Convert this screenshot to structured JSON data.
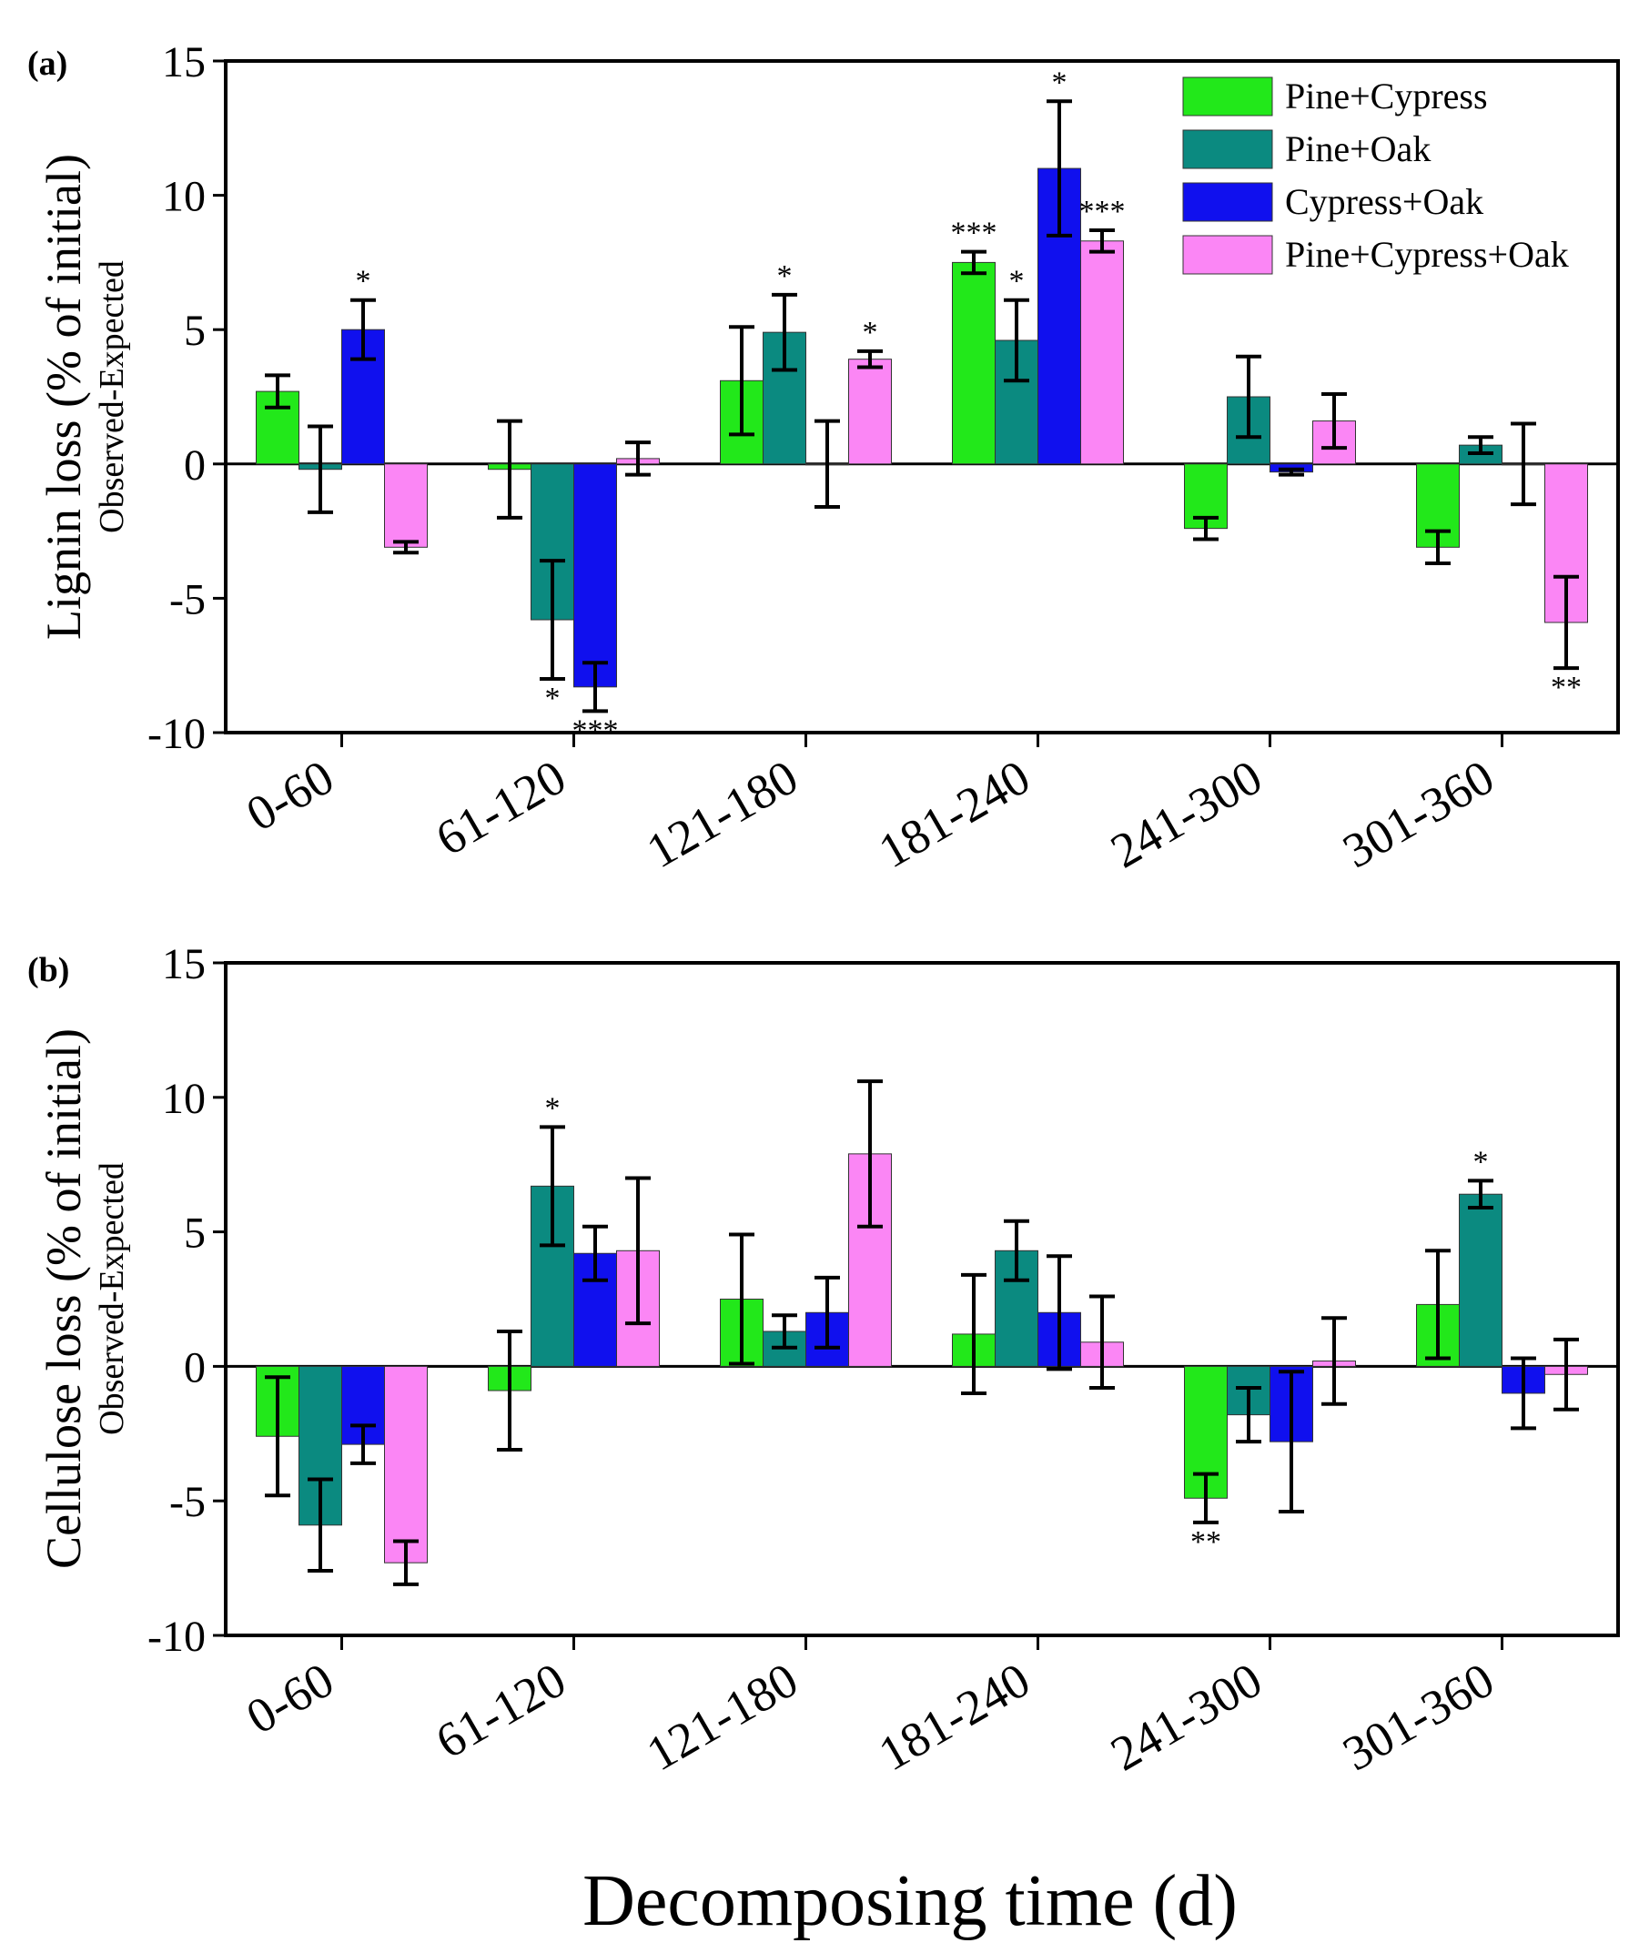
{
  "colors": {
    "Pine+Cypress": "#22e81a",
    "Pine+Oak": "#0b8a80",
    "Cypress+Oak": "#1010ee",
    "Pine+Cypress+Oak": "#fb86f5"
  },
  "xlabel": "Decomposing time (d)",
  "chart_data": [
    {
      "type": "bar",
      "panel": "(a)",
      "ylabel": "Lignin loss (% of initial)",
      "ylabel_sub": "Observed-Expected",
      "ylim": [
        -10,
        15
      ],
      "yticks": [
        -10,
        -5,
        0,
        5,
        10,
        15
      ],
      "categories": [
        "0-60",
        "61-120",
        "121-180",
        "181-240",
        "241-300",
        "301-360"
      ],
      "legend": "top-right",
      "series": [
        {
          "name": "Pine+Cypress",
          "values": [
            2.7,
            -0.2,
            3.1,
            7.5,
            -2.4,
            -3.1
          ],
          "err": [
            0.6,
            1.8,
            2.0,
            0.4,
            0.4,
            0.6
          ],
          "sig": [
            "",
            "",
            "",
            "***",
            "",
            ""
          ]
        },
        {
          "name": "Pine+Oak",
          "values": [
            -0.2,
            -5.8,
            4.9,
            4.6,
            2.5,
            0.7
          ],
          "err": [
            1.6,
            2.2,
            1.4,
            1.5,
            1.5,
            0.3
          ],
          "sig": [
            "",
            "*",
            "*",
            "*",
            "",
            ""
          ]
        },
        {
          "name": "Cypress+Oak",
          "values": [
            5.0,
            -8.3,
            0.0,
            11.0,
            -0.3,
            0.0
          ],
          "err": [
            1.1,
            0.9,
            1.6,
            2.5,
            0.1,
            1.5
          ],
          "sig": [
            "*",
            "***",
            "",
            "*",
            "",
            ""
          ]
        },
        {
          "name": "Pine+Cypress+Oak",
          "values": [
            -3.1,
            0.2,
            3.9,
            8.3,
            1.6,
            -5.9
          ],
          "err": [
            0.2,
            0.6,
            0.3,
            0.4,
            1.0,
            1.7
          ],
          "sig": [
            "",
            "",
            "*",
            "***",
            "",
            "**"
          ]
        }
      ]
    },
    {
      "type": "bar",
      "panel": "(b)",
      "ylabel": "Cellulose loss (% of initial)",
      "ylabel_sub": "Observed-Expected",
      "ylim": [
        -10,
        15
      ],
      "yticks": [
        -10,
        -5,
        0,
        5,
        10,
        15
      ],
      "categories": [
        "0-60",
        "61-120",
        "121-180",
        "181-240",
        "241-300",
        "301-360"
      ],
      "series": [
        {
          "name": "Pine+Cypress",
          "values": [
            -2.6,
            -0.9,
            2.5,
            1.2,
            -4.9,
            2.3
          ],
          "err": [
            2.2,
            2.2,
            2.4,
            2.2,
            0.9,
            2.0
          ],
          "sig": [
            "",
            "",
            "",
            "",
            "**",
            ""
          ]
        },
        {
          "name": "Pine+Oak",
          "values": [
            -5.9,
            6.7,
            1.3,
            4.3,
            -1.8,
            6.4
          ],
          "err": [
            1.7,
            2.2,
            0.6,
            1.1,
            1.0,
            0.5
          ],
          "sig": [
            "",
            "*",
            "",
            "",
            "",
            "*"
          ]
        },
        {
          "name": "Cypress+Oak",
          "values": [
            -2.9,
            4.2,
            2.0,
            2.0,
            -2.8,
            -1.0
          ],
          "err": [
            0.7,
            1.0,
            1.3,
            2.1,
            2.6,
            1.3
          ],
          "sig": [
            "",
            "",
            "",
            "",
            "",
            ""
          ]
        },
        {
          "name": "Pine+Cypress+Oak",
          "values": [
            -7.3,
            4.3,
            7.9,
            0.9,
            0.2,
            -0.3
          ],
          "err": [
            0.8,
            2.7,
            2.7,
            1.7,
            1.6,
            1.3
          ],
          "sig": [
            "",
            "",
            "",
            "",
            "",
            ""
          ]
        }
      ]
    }
  ]
}
